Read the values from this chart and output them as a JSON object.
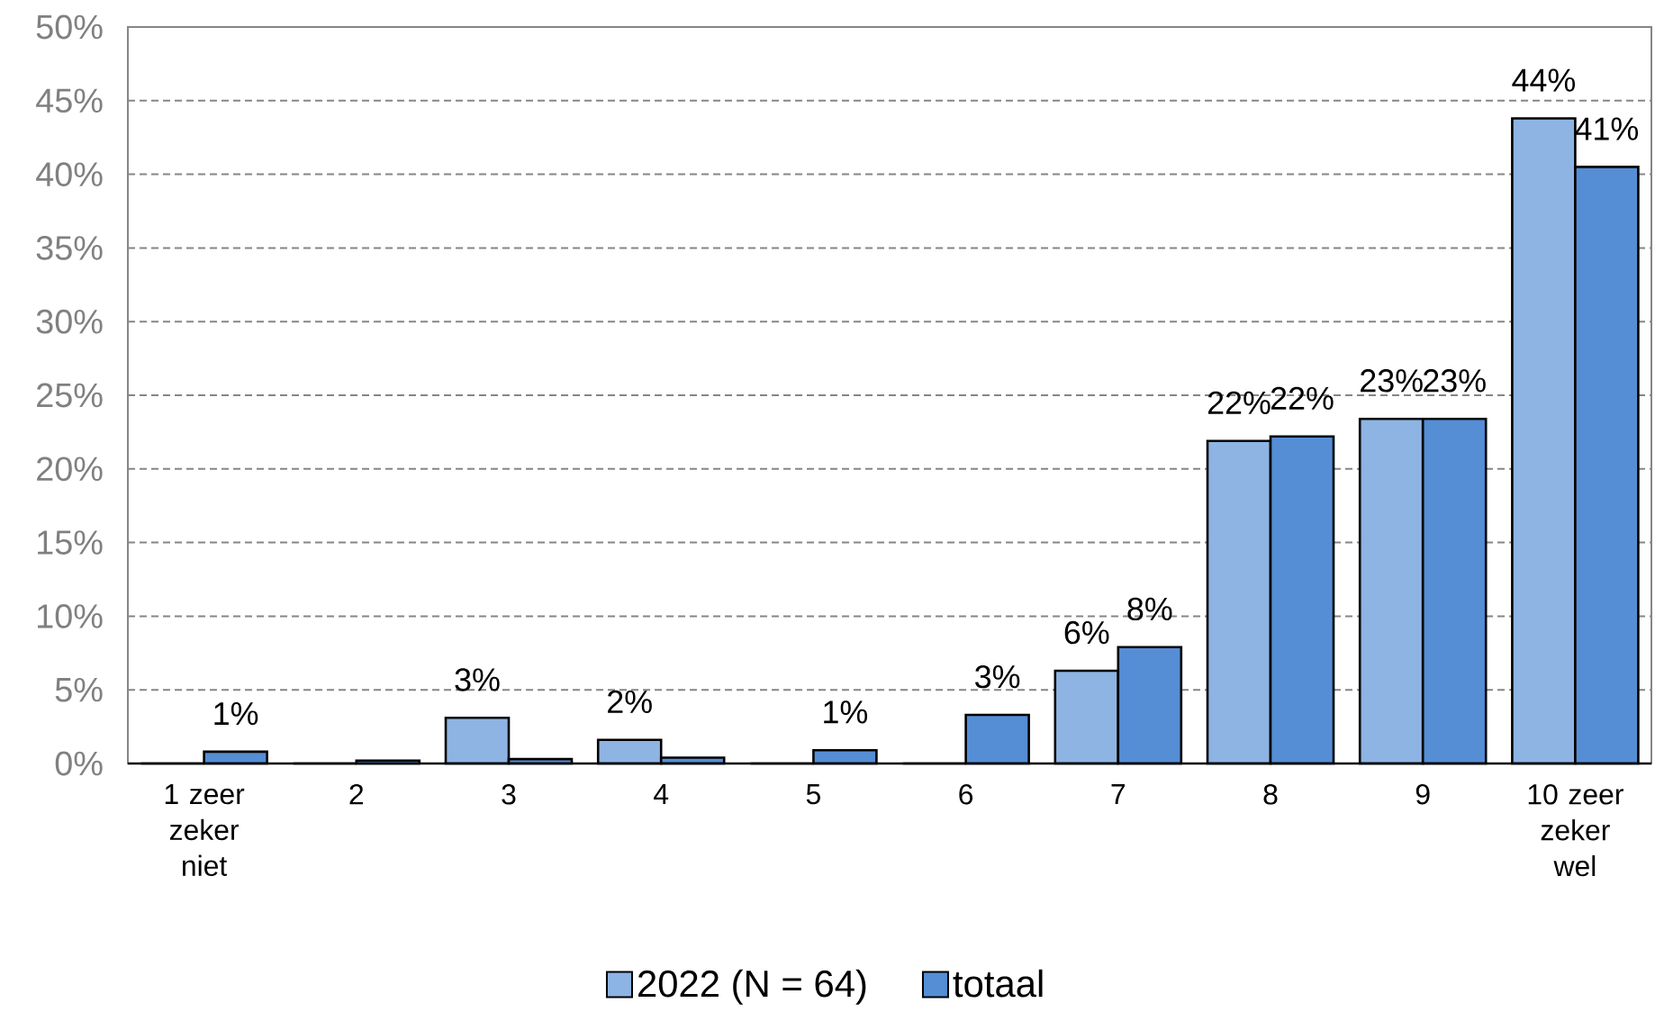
{
  "chart_data": {
    "type": "bar",
    "categories": [
      "1 zeer zeker niet",
      "2",
      "3",
      "4",
      "5",
      "6",
      "7",
      "8",
      "9",
      "10 zeer zeker wel"
    ],
    "series": [
      {
        "name": "2022 (N = 64)",
        "color": "#8eb4e3",
        "values": [
          0,
          0,
          3.1,
          1.6,
          0,
          0,
          6.3,
          21.9,
          23.4,
          43.8
        ],
        "value_labels": [
          null,
          null,
          "3%",
          "2%",
          null,
          null,
          "6%",
          "22%",
          "23%",
          "44%"
        ]
      },
      {
        "name": "totaal",
        "color": "#558ed5",
        "values": [
          0.8,
          0.2,
          0.3,
          0.4,
          0.9,
          3.3,
          7.9,
          22.2,
          23.4,
          40.5
        ],
        "value_labels": [
          "1%",
          null,
          null,
          null,
          "1%",
          "3%",
          "8%",
          "22%",
          "23%",
          "41%"
        ]
      }
    ],
    "ylim": [
      0,
      50
    ],
    "yticks": [
      {
        "value": 0,
        "label": "0%"
      },
      {
        "value": 5,
        "label": "5%"
      },
      {
        "value": 10,
        "label": "10%"
      },
      {
        "value": 15,
        "label": "15%"
      },
      {
        "value": 20,
        "label": "20%"
      },
      {
        "value": 25,
        "label": "25%"
      },
      {
        "value": 30,
        "label": "30%"
      },
      {
        "value": 35,
        "label": "35%"
      },
      {
        "value": 40,
        "label": "40%"
      },
      {
        "value": 45,
        "label": "45%"
      },
      {
        "value": 50,
        "label": "50%"
      }
    ],
    "grid": "y",
    "legend": "bottom"
  }
}
